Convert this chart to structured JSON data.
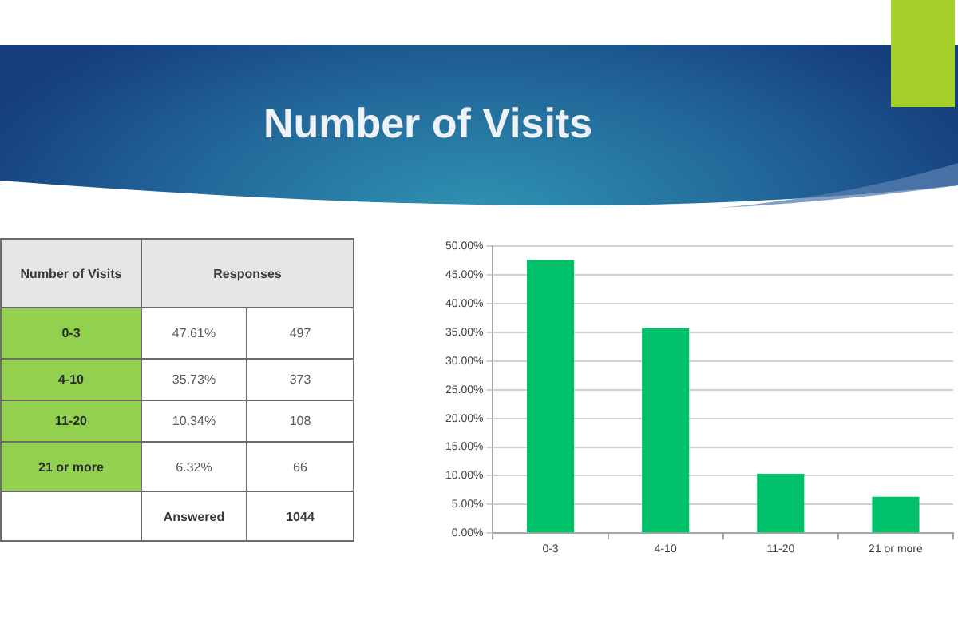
{
  "chart_data": [
    {
      "type": "other",
      "title": "Number of Visits",
      "ylabel": "Number of Visits",
      "xlabel": "Responses",
      "categories": [
        "0-3",
        "4-10",
        "11-20",
        "21 or more"
      ],
      "series": [
        {
          "values": [
            47.61,
            35.73,
            10.34,
            6.32
          ],
          "value_labels": [
            "47.61%",
            "35.73%",
            "10.34%",
            "6.32%"
          ]
        },
        {
          "values": [
            497,
            373,
            108,
            66
          ]
        }
      ],
      "data_labels": true,
      "annotations": [
        "Answered"
      ],
      "totals": [
        "1044"
      ]
    },
    {
      "type": "bar",
      "categories": [
        "0-3",
        "4-10",
        "11-20",
        "21 or more"
      ],
      "values": [
        47.61,
        35.73,
        10.34,
        6.32
      ],
      "color": "#00c06a",
      "ylim": [
        0,
        50
      ],
      "yticks": [
        {
          "value": 0,
          "label": "0.00%"
        },
        {
          "value": 5,
          "label": "5.00%"
        },
        {
          "value": 10,
          "label": "10.00%"
        },
        {
          "value": 15,
          "label": "15.00%"
        },
        {
          "value": 20,
          "label": "20.00%"
        },
        {
          "value": 25,
          "label": "25.00%"
        },
        {
          "value": 30,
          "label": "30.00%"
        },
        {
          "value": 35,
          "label": "35.00%"
        },
        {
          "value": 40,
          "label": "40.00%"
        },
        {
          "value": 45,
          "label": "45.00%"
        },
        {
          "value": 50,
          "label": "50.00%"
        }
      ],
      "grid": "y"
    }
  ]
}
